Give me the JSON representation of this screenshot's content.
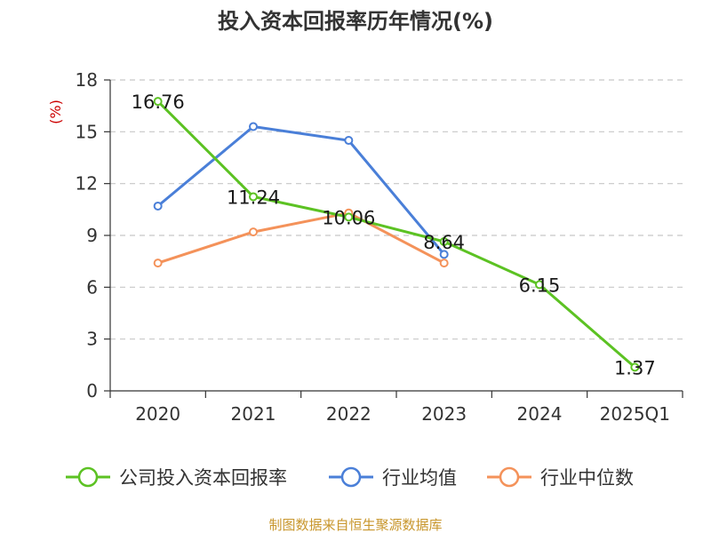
{
  "chart_data": {
    "type": "line",
    "title": "投入资本回报率历年情况(%)",
    "ylabel": "(%)",
    "xlabel": "",
    "categories": [
      "2020",
      "2021",
      "2022",
      "2023",
      "2024",
      "2025Q1"
    ],
    "ylim": [
      0,
      18
    ],
    "yticks": [
      0,
      3,
      6,
      9,
      12,
      15,
      18
    ],
    "grid": true,
    "legend_position": "bottom",
    "series": [
      {
        "name": "公司投入资本回报率",
        "color": "#5cc223",
        "values": [
          16.76,
          11.24,
          10.06,
          8.64,
          6.15,
          1.37
        ],
        "labels": [
          "16.76",
          "11.24",
          "10.06",
          "8.64",
          "6.15",
          "1.37"
        ]
      },
      {
        "name": "行业均值",
        "color": "#4a7fd8",
        "values": [
          10.7,
          15.3,
          14.5,
          7.9,
          null,
          null
        ]
      },
      {
        "name": "行业中位数",
        "color": "#f4925a",
        "values": [
          7.4,
          9.2,
          10.3,
          7.4,
          null,
          null
        ]
      }
    ]
  },
  "source": "制图数据来自恒生聚源数据库"
}
